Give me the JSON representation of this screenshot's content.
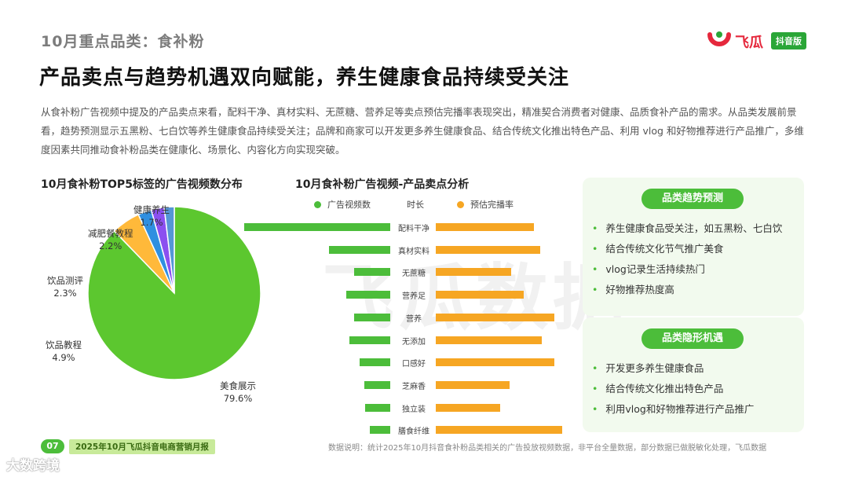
{
  "header": {
    "section_title": "10月重点品类：食补粉",
    "main_title": "产品卖点与趋势机遇双向赋能，养生健康食品持续受关注",
    "intro": "从食补粉广告视频中提及的产品卖点来看，配料干净、真材实料、无蔗糖、营养足等卖点预估完播率表现突出，精准契合消费者对健康、品质食补产品的需求。从品类发展前景看，趋势预测显示五黑粉、七白饮等养生健康食品持续受关注；品牌和商家可以开发更多养生健康食品、结合传统文化推出特色产品、利用 vlog 和好物推荐进行产品推广，多维度因素共同推动食补粉品类在健康化、场景化、内容化方向实现突破。"
  },
  "logo": {
    "word": "飞瓜",
    "badge": "抖音版"
  },
  "watermark": "飞瓜数据",
  "pie_title": "10月食补粉TOP5标签的广告视频数分布",
  "bar_title": "10月食补粉广告视频-产品卖点分析",
  "chart_data": [
    {
      "type": "pie",
      "title": "10月食补粉TOP5标签的广告视频数分布",
      "labels": [
        "美食展示",
        "饮品教程",
        "饮品测评",
        "减肥餐教程",
        "健康养生"
      ],
      "values": [
        79.6,
        4.9,
        2.3,
        2.2,
        1.7
      ],
      "value_labels": [
        "79.6%",
        "4.9%",
        "2.3%",
        "2.2%",
        "1.7%"
      ],
      "colors": [
        "#5cc72f",
        "#ffb93a",
        "#2f8fe0",
        "#8b4ff0",
        "#5596d6"
      ]
    },
    {
      "type": "bar",
      "title": "10月食补粉广告视频-产品卖点分析",
      "legend": [
        "广告视频数",
        "时长",
        "预估完播率"
      ],
      "legend_colors": [
        "#4cbd3a",
        "#bdbdbd",
        "#f6a623"
      ],
      "categories": [
        "配料干净",
        "真材实料",
        "无蔗糖",
        "营养足",
        "营养",
        "无添加",
        "口感好",
        "芝麻香",
        "独立装",
        "膳食纤维"
      ],
      "series": [
        {
          "name": "广告视频数",
          "values": [
            100,
            42,
            25,
            30,
            25,
            28,
            21,
            18,
            17,
            14
          ]
        },
        {
          "name": "预估完播率",
          "values": [
            64,
            68,
            49,
            57,
            77,
            69,
            77,
            48,
            42,
            82
          ]
        }
      ]
    }
  ],
  "panels": [
    {
      "title": "品类趋势预测",
      "items": [
        "养生健康食品受关注，如五黑粉、七白饮",
        "结合传统文化节气推广美食",
        "vlog记录生活持续热门",
        "好物推荐热度高"
      ]
    },
    {
      "title": "品类隐形机遇",
      "items": [
        "开发更多养生健康食品",
        "结合传统文化推出特色产品",
        "利用vlog和好物推荐进行产品推广"
      ]
    }
  ],
  "footer": {
    "page_no": "07",
    "report_name": "2025年10月飞瓜抖音电商营销月报",
    "note": "数据说明：统计2025年10月抖音食补粉品类相关的广告投放视频数据，非平台全量数据，部分数据已做脱敏化处理，飞瓜数据",
    "corner_mark": "大数跨境"
  }
}
